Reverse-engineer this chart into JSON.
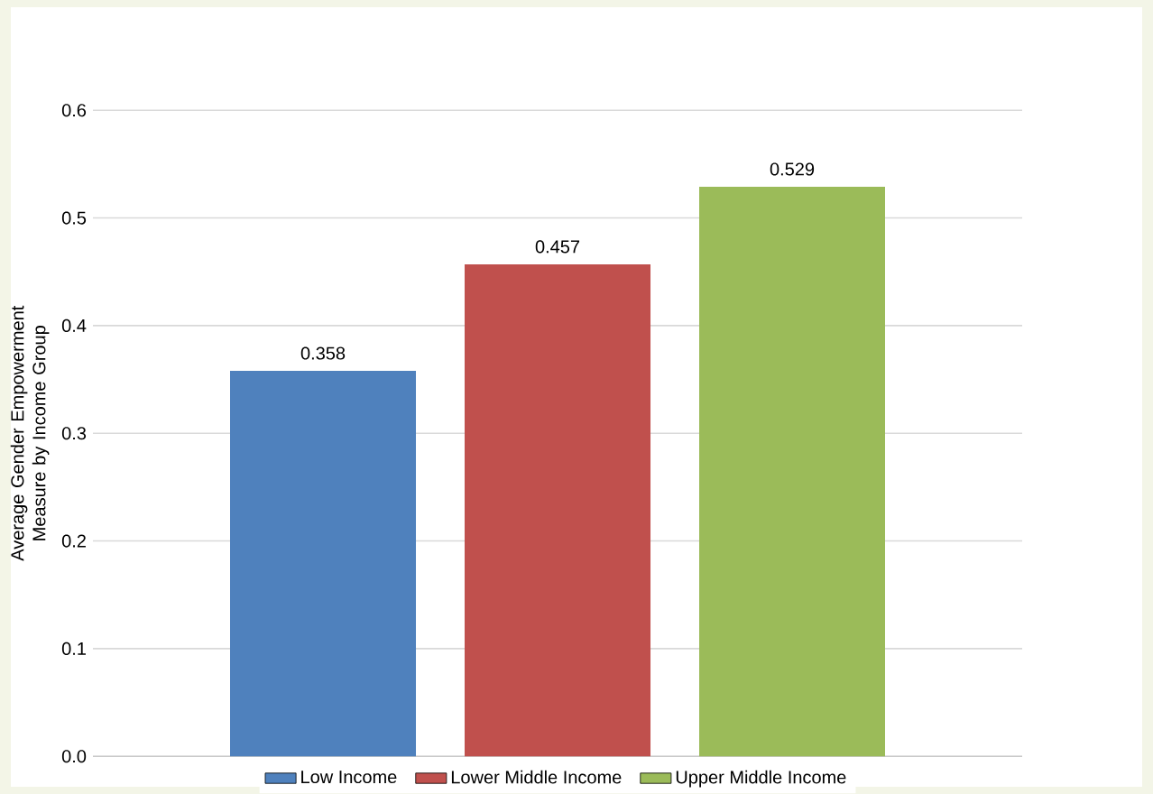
{
  "chart_data": {
    "type": "bar",
    "ylabel": "Average Gender Empowerment Measure by Income Group",
    "categories": [
      null
    ],
    "series": [
      {
        "name": "Low Income",
        "color": "#4f81bd",
        "values": [
          0.358
        ]
      },
      {
        "name": "Lower Middle Income",
        "color": "#c0504d",
        "values": [
          0.457
        ]
      },
      {
        "name": "Upper Middle Income",
        "color": "#9bbb59",
        "values": [
          0.529
        ]
      }
    ],
    "ylim": [
      0,
      0.6
    ],
    "yticks": [
      {
        "value": 0,
        "label": "0.0"
      },
      0.1,
      0.2,
      0.3,
      0.4,
      0.5,
      0.6
    ],
    "grid": "y",
    "legend": "bottom",
    "data_labels": true
  }
}
